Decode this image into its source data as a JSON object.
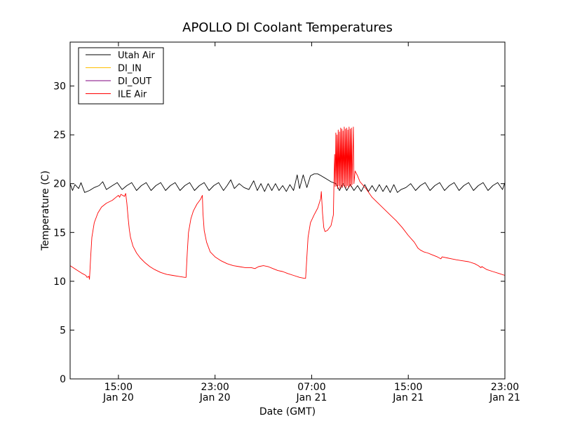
{
  "chart_data": {
    "type": "line",
    "title": "APOLLO DI Coolant Temperatures",
    "xlabel": "Date (GMT)",
    "ylabel": "Temperature (C)",
    "x_unit": "hours from Jan 20 11:00 GMT",
    "xlim": [
      0,
      36
    ],
    "ylim": [
      0,
      34.5
    ],
    "y_ticks": [
      0,
      5,
      10,
      15,
      20,
      25,
      30
    ],
    "x_ticks": [
      {
        "x": 4,
        "time": "15:00",
        "date": "Jan 20"
      },
      {
        "x": 12,
        "time": "23:00",
        "date": "Jan 20"
      },
      {
        "x": 20,
        "time": "07:00",
        "date": "Jan 21"
      },
      {
        "x": 28,
        "time": "15:00",
        "date": "Jan 21"
      },
      {
        "x": 36,
        "time": "23:00",
        "date": "Jan 21"
      }
    ],
    "grid": false,
    "legend": {
      "location": "top-left",
      "entries": [
        {
          "name": "Utah Air",
          "color": "#000000"
        },
        {
          "name": "DI_IN",
          "color": "#ffbf00"
        },
        {
          "name": "DI_OUT",
          "color": "#7f007f"
        },
        {
          "name": "ILE Air",
          "color": "#ff0000"
        }
      ]
    },
    "series": [
      {
        "name": "Utah Air",
        "color": "#000000",
        "points": [
          [
            0.0,
            20.0
          ],
          [
            0.2,
            19.3
          ],
          [
            0.4,
            19.9
          ],
          [
            0.7,
            19.5
          ],
          [
            0.9,
            20.1
          ],
          [
            1.2,
            19.1
          ],
          [
            1.6,
            19.3
          ],
          [
            2.0,
            19.6
          ],
          [
            2.4,
            19.8
          ],
          [
            2.7,
            20.2
          ],
          [
            3.0,
            19.4
          ],
          [
            3.5,
            19.8
          ],
          [
            3.9,
            20.1
          ],
          [
            4.3,
            19.4
          ],
          [
            4.7,
            19.8
          ],
          [
            5.1,
            20.1
          ],
          [
            5.5,
            19.3
          ],
          [
            5.9,
            19.8
          ],
          [
            6.3,
            20.1
          ],
          [
            6.7,
            19.3
          ],
          [
            7.1,
            19.8
          ],
          [
            7.5,
            20.1
          ],
          [
            7.9,
            19.3
          ],
          [
            8.3,
            19.8
          ],
          [
            8.7,
            20.1
          ],
          [
            9.1,
            19.3
          ],
          [
            9.5,
            19.8
          ],
          [
            9.9,
            20.1
          ],
          [
            10.3,
            19.3
          ],
          [
            10.7,
            19.8
          ],
          [
            11.1,
            20.1
          ],
          [
            11.5,
            19.3
          ],
          [
            11.9,
            19.8
          ],
          [
            12.3,
            20.1
          ],
          [
            12.7,
            19.3
          ],
          [
            13.0,
            19.8
          ],
          [
            13.3,
            20.4
          ],
          [
            13.6,
            19.5
          ],
          [
            14.0,
            20.0
          ],
          [
            14.4,
            19.6
          ],
          [
            14.8,
            19.4
          ],
          [
            15.2,
            20.3
          ],
          [
            15.5,
            19.3
          ],
          [
            15.8,
            20.0
          ],
          [
            16.1,
            19.2
          ],
          [
            16.4,
            20.0
          ],
          [
            16.7,
            19.3
          ],
          [
            17.0,
            20.0
          ],
          [
            17.3,
            19.3
          ],
          [
            17.6,
            19.8
          ],
          [
            17.9,
            19.2
          ],
          [
            18.2,
            19.9
          ],
          [
            18.5,
            19.3
          ],
          [
            18.8,
            20.9
          ],
          [
            19.0,
            19.5
          ],
          [
            19.3,
            20.9
          ],
          [
            19.6,
            19.6
          ],
          [
            19.9,
            20.8
          ],
          [
            20.2,
            21.0
          ],
          [
            20.5,
            21.0
          ],
          [
            20.8,
            20.8
          ],
          [
            21.2,
            20.5
          ],
          [
            21.6,
            20.2
          ],
          [
            22.0,
            20.0
          ],
          [
            22.3,
            19.3
          ],
          [
            22.6,
            20.0
          ],
          [
            22.9,
            19.3
          ],
          [
            23.2,
            19.9
          ],
          [
            23.5,
            19.3
          ],
          [
            23.8,
            19.8
          ],
          [
            24.1,
            19.2
          ],
          [
            24.4,
            19.9
          ],
          [
            24.7,
            19.2
          ],
          [
            25.0,
            19.8
          ],
          [
            25.3,
            19.2
          ],
          [
            25.6,
            19.9
          ],
          [
            25.9,
            19.2
          ],
          [
            26.2,
            19.8
          ],
          [
            26.5,
            19.1
          ],
          [
            26.8,
            19.9
          ],
          [
            27.1,
            19.1
          ],
          [
            27.4,
            19.4
          ],
          [
            27.8,
            19.6
          ],
          [
            28.2,
            20.0
          ],
          [
            28.6,
            19.3
          ],
          [
            29.0,
            19.8
          ],
          [
            29.4,
            20.1
          ],
          [
            29.8,
            19.3
          ],
          [
            30.2,
            19.8
          ],
          [
            30.6,
            20.1
          ],
          [
            31.0,
            19.3
          ],
          [
            31.4,
            19.8
          ],
          [
            31.8,
            20.1
          ],
          [
            32.2,
            19.3
          ],
          [
            32.6,
            19.8
          ],
          [
            33.0,
            20.1
          ],
          [
            33.4,
            19.3
          ],
          [
            33.8,
            19.8
          ],
          [
            34.2,
            20.1
          ],
          [
            34.6,
            19.3
          ],
          [
            35.0,
            19.8
          ],
          [
            35.4,
            20.1
          ],
          [
            35.8,
            19.4
          ],
          [
            36.0,
            20.1
          ]
        ]
      },
      {
        "name": "ILE Air",
        "color": "#ff0000",
        "points": [
          [
            0.0,
            11.6
          ],
          [
            0.5,
            11.2
          ],
          [
            1.0,
            10.8
          ],
          [
            1.3,
            10.6
          ],
          [
            1.4,
            10.4
          ],
          [
            1.55,
            10.5
          ],
          [
            1.6,
            10.2
          ],
          [
            1.7,
            12.5
          ],
          [
            1.8,
            14.5
          ],
          [
            2.0,
            16.0
          ],
          [
            2.3,
            17.0
          ],
          [
            2.6,
            17.6
          ],
          [
            3.0,
            18.0
          ],
          [
            3.5,
            18.3
          ],
          [
            3.8,
            18.6
          ],
          [
            4.0,
            18.8
          ],
          [
            4.1,
            18.6
          ],
          [
            4.2,
            18.9
          ],
          [
            4.5,
            18.7
          ],
          [
            4.6,
            19.0
          ],
          [
            4.7,
            18.0
          ],
          [
            4.8,
            16.5
          ],
          [
            4.9,
            15.3
          ],
          [
            5.0,
            14.5
          ],
          [
            5.2,
            13.6
          ],
          [
            5.5,
            12.9
          ],
          [
            5.8,
            12.4
          ],
          [
            6.2,
            11.9
          ],
          [
            6.6,
            11.5
          ],
          [
            7.0,
            11.2
          ],
          [
            7.5,
            10.9
          ],
          [
            8.0,
            10.7
          ],
          [
            8.5,
            10.6
          ],
          [
            9.0,
            10.5
          ],
          [
            9.5,
            10.4
          ],
          [
            9.6,
            10.4
          ],
          [
            9.7,
            13.0
          ],
          [
            9.8,
            15.0
          ],
          [
            10.0,
            16.4
          ],
          [
            10.2,
            17.2
          ],
          [
            10.5,
            17.9
          ],
          [
            10.8,
            18.4
          ],
          [
            10.95,
            18.8
          ],
          [
            11.0,
            17.0
          ],
          [
            11.1,
            15.2
          ],
          [
            11.3,
            14.0
          ],
          [
            11.6,
            13.0
          ],
          [
            12.0,
            12.5
          ],
          [
            12.5,
            12.1
          ],
          [
            13.0,
            11.8
          ],
          [
            13.5,
            11.6
          ],
          [
            14.0,
            11.5
          ],
          [
            14.5,
            11.4
          ],
          [
            15.0,
            11.4
          ],
          [
            15.3,
            11.3
          ],
          [
            15.6,
            11.5
          ],
          [
            16.0,
            11.6
          ],
          [
            16.4,
            11.5
          ],
          [
            16.8,
            11.3
          ],
          [
            17.2,
            11.1
          ],
          [
            17.6,
            11.0
          ],
          [
            18.0,
            10.8
          ],
          [
            18.5,
            10.6
          ],
          [
            19.0,
            10.4
          ],
          [
            19.4,
            10.3
          ],
          [
            19.5,
            10.3
          ],
          [
            19.6,
            12.5
          ],
          [
            19.7,
            14.5
          ],
          [
            19.9,
            16.0
          ],
          [
            20.2,
            16.8
          ],
          [
            20.5,
            17.5
          ],
          [
            20.75,
            18.5
          ],
          [
            20.8,
            19.2
          ],
          [
            20.9,
            17.0
          ],
          [
            21.0,
            15.5
          ],
          [
            21.1,
            15.1
          ],
          [
            21.3,
            15.2
          ],
          [
            21.6,
            15.7
          ],
          [
            21.8,
            16.8
          ],
          [
            21.85,
            20.2
          ],
          [
            21.9,
            23.0
          ],
          [
            21.95,
            19.7
          ],
          [
            22.0,
            25.2
          ],
          [
            22.05,
            19.8
          ],
          [
            22.1,
            25.0
          ],
          [
            22.15,
            19.5
          ],
          [
            22.2,
            25.5
          ],
          [
            22.25,
            19.8
          ],
          [
            22.3,
            25.3
          ],
          [
            22.35,
            19.5
          ],
          [
            22.4,
            25.7
          ],
          [
            22.45,
            19.7
          ],
          [
            22.5,
            25.6
          ],
          [
            22.55,
            19.6
          ],
          [
            22.6,
            25.4
          ],
          [
            22.65,
            19.8
          ],
          [
            22.7,
            25.8
          ],
          [
            22.75,
            19.7
          ],
          [
            22.8,
            25.6
          ],
          [
            22.85,
            19.6
          ],
          [
            22.9,
            25.7
          ],
          [
            22.95,
            19.8
          ],
          [
            23.0,
            25.5
          ],
          [
            23.05,
            19.6
          ],
          [
            23.1,
            25.8
          ],
          [
            23.15,
            19.8
          ],
          [
            23.2,
            25.6
          ],
          [
            23.25,
            19.7
          ],
          [
            23.3,
            25.7
          ],
          [
            23.35,
            19.9
          ],
          [
            23.45,
            25.8
          ],
          [
            23.5,
            20.0
          ],
          [
            23.6,
            21.3
          ],
          [
            23.8,
            20.8
          ],
          [
            24.0,
            20.2
          ],
          [
            24.5,
            19.5
          ],
          [
            25.0,
            18.6
          ],
          [
            25.5,
            18.0
          ],
          [
            26.0,
            17.4
          ],
          [
            26.5,
            16.8
          ],
          [
            27.0,
            16.2
          ],
          [
            27.5,
            15.5
          ],
          [
            28.0,
            14.7
          ],
          [
            28.5,
            14.0
          ],
          [
            28.8,
            13.4
          ],
          [
            29.0,
            13.2
          ],
          [
            29.3,
            13.0
          ],
          [
            29.6,
            12.9
          ],
          [
            30.0,
            12.7
          ],
          [
            30.4,
            12.5
          ],
          [
            30.7,
            12.3
          ],
          [
            30.8,
            12.5
          ],
          [
            31.2,
            12.4
          ],
          [
            31.6,
            12.3
          ],
          [
            32.0,
            12.2
          ],
          [
            32.5,
            12.1
          ],
          [
            33.0,
            12.0
          ],
          [
            33.5,
            11.8
          ],
          [
            33.8,
            11.6
          ],
          [
            34.0,
            11.4
          ],
          [
            34.1,
            11.5
          ],
          [
            34.5,
            11.2
          ],
          [
            35.0,
            11.0
          ],
          [
            35.5,
            10.8
          ],
          [
            36.0,
            10.6
          ]
        ]
      }
    ]
  }
}
